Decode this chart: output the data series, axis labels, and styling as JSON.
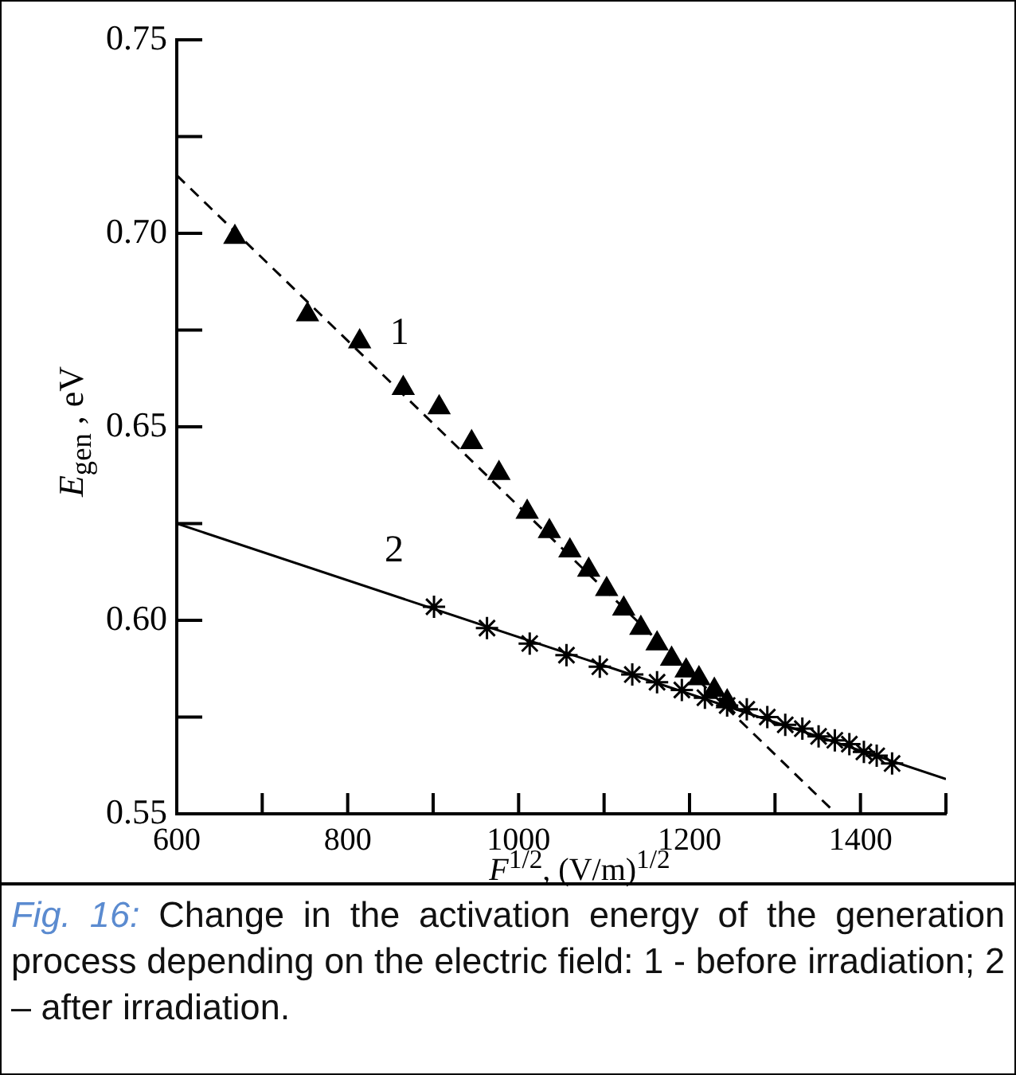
{
  "chart_data": {
    "type": "scatter",
    "xlabel": "F$^{1/2}$, (V/m)$^{1/2}$",
    "ylabel": "E$_{gen}$ , eV",
    "xlim": [
      600,
      1500
    ],
    "xticks": [
      600,
      {
        "value": 700,
        "label": null
      },
      800,
      {
        "value": 900,
        "label": null
      },
      1000,
      {
        "value": 1100,
        "label": null
      },
      1200,
      {
        "value": 1300,
        "label": null
      },
      1400,
      {
        "value": 1500,
        "label": null
      }
    ],
    "ylim": [
      0.55,
      0.75
    ],
    "yticks": [
      {
        "value": 0.55,
        "label": "0.55"
      },
      {
        "value": 0.575,
        "label": null
      },
      {
        "value": 0.6,
        "label": "0.60"
      },
      {
        "value": 0.625,
        "label": null
      },
      {
        "value": 0.65,
        "label": "0.65"
      },
      {
        "value": 0.675,
        "label": null
      },
      {
        "value": 0.7,
        "label": "0.70"
      },
      {
        "value": 0.725,
        "label": null
      },
      {
        "value": 0.75,
        "label": "0.75"
      }
    ],
    "grid": false,
    "legend": false,
    "series": [
      {
        "name": "1",
        "color": "#000000",
        "marker": "triangle",
        "x": [
          668,
          753,
          814,
          865,
          907,
          945,
          977,
          1010,
          1036,
          1060,
          1082,
          1103,
          1123,
          1143,
          1162,
          1179,
          1196,
          1211,
          1229,
          1244
        ],
        "values": [
          0.699,
          0.679,
          0.672,
          0.66,
          0.655,
          0.646,
          0.638,
          0.628,
          0.623,
          0.618,
          0.613,
          0.608,
          0.603,
          0.598,
          0.594,
          0.59,
          0.587,
          0.585,
          0.582,
          0.579
        ]
      },
      {
        "name": "2",
        "color": "#000000",
        "marker": "cross",
        "x": [
          901,
          963,
          1013,
          1056,
          1095,
          1133,
          1162,
          1191,
          1218,
          1244,
          1267,
          1291,
          1312,
          1332,
          1351,
          1370,
          1387,
          1404,
          1419,
          1437
        ],
        "values": [
          0.6035,
          0.598,
          0.594,
          0.591,
          0.588,
          0.586,
          0.584,
          0.582,
          0.58,
          0.578,
          0.577,
          0.575,
          0.573,
          0.572,
          0.57,
          0.569,
          0.568,
          0.566,
          0.565,
          0.563
        ]
      },
      {
        "type": "line",
        "color": "#000000",
        "marker": "none",
        "line_style": "dashed",
        "x": [
          600,
          1367
        ],
        "values": [
          0.715,
          0.551
        ]
      },
      {
        "type": "line",
        "color": "#000000",
        "marker": "none",
        "line_style": "solid",
        "x": [
          600,
          1500
        ],
        "values": [
          0.625,
          0.559
        ]
      }
    ],
    "annotations": [
      "Fig. 16:",
      "Change in the activation energy of the generation process depending on the electric field: 1 - before irradiation; 2 – after irradiation."
    ]
  }
}
